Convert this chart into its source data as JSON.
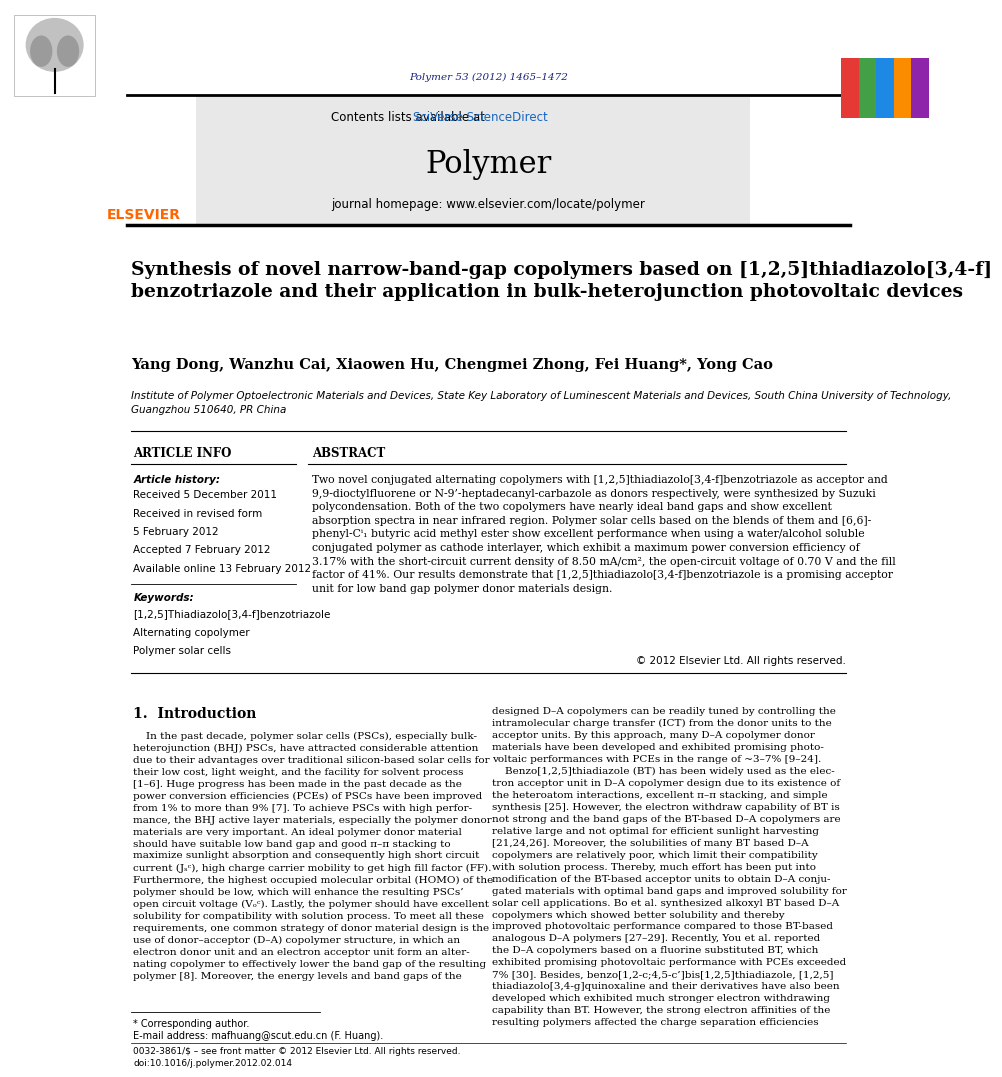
{
  "bg_color": "#ffffff",
  "page_width": 9.92,
  "page_height": 13.23,
  "journal_ref": "Polymer 53 (2012) 1465–1472",
  "journal_ref_color": "#1a237e",
  "journal_name": "Polymer",
  "contents_pre": "Contents lists available at ",
  "sciverse_text": "SciVerse ScienceDirect",
  "sciverse_color": "#1565c0",
  "homepage_line": "journal homepage: www.elsevier.com/locate/polymer",
  "header_bg": "#e8e8e8",
  "elsevier_color": "#ff6600",
  "title": "Synthesis of novel narrow-band-gap copolymers based on [1,2,5]thiadiazolo[3,4-f]\nbenzotriazole and their application in bulk-heterojunction photovoltaic devices",
  "authors": "Yang Dong, Wanzhu Cai, Xiaowen Hu, Chengmei Zhong, Fei Huang*, Yong Cao",
  "affiliation": "Institute of Polymer Optoelectronic Materials and Devices, State Key Laboratory of Luminescent Materials and Devices, South China University of Technology,\nGuangzhou 510640, PR China",
  "article_info_title": "ARTICLE INFO",
  "abstract_title": "ABSTRACT",
  "article_history_label": "Article history:",
  "received1": "Received 5 December 2011",
  "received2": "Received in revised form",
  "received2b": "5 February 2012",
  "accepted": "Accepted 7 February 2012",
  "available": "Available online 13 February 2012",
  "keywords_label": "Keywords:",
  "keyword1": "[1,2,5]Thiadiazolo[3,4-f]benzotriazole",
  "keyword2": "Alternating copolymer",
  "keyword3": "Polymer solar cells",
  "abstract_text": "Two novel conjugated alternating copolymers with [1,2,5]thiadiazolo[3,4-f]benzotriazole as acceptor and\n9,9-dioctylfluorene or N-9’-heptadecanyl-carbazole as donors respectively, were synthesized by Suzuki\npolycondensation. Both of the two copolymers have nearly ideal band gaps and show excellent\nabsorption spectra in near infrared region. Polymer solar cells based on the blends of them and [6,6]-\nphenyl-Cⁱ₁ butyric acid methyl ester show excellent performance when using a water/alcohol soluble\nconjugated polymer as cathode interlayer, which exhibit a maximum power conversion efficiency of\n3.17% with the short-circuit current density of 8.50 mA/cm², the open-circuit voltage of 0.70 V and the fill\nfactor of 41%. Our results demonstrate that [1,2,5]thiadiazolo[3,4-f]benzotriazole is a promising acceptor\nunit for low band gap polymer donor materials design.",
  "copyright": "© 2012 Elsevier Ltd. All rights reserved.",
  "section1_title": "1.  Introduction",
  "intro_col1": "    In the past decade, polymer solar cells (PSCs), especially bulk-\nheterojunction (BHJ) PSCs, have attracted considerable attention\ndue to their advantages over traditional silicon-based solar cells for\ntheir low cost, light weight, and the facility for solvent process\n[1–6]. Huge progress has been made in the past decade as the\npower conversion efficiencies (PCEs) of PSCs have been improved\nfrom 1% to more than 9% [7]. To achieve PSCs with high perfor-\nmance, the BHJ active layer materials, especially the polymer donor\nmaterials are very important. An ideal polymer donor material\nshould have suitable low band gap and good π–π stacking to\nmaximize sunlight absorption and consequently high short circuit\ncurrent (Jₛᶜ), high charge carrier mobility to get high fill factor (FF).\nFurthermore, the highest occupied molecular orbital (HOMO) of the\npolymer should be low, which will enhance the resulting PSCs’\nopen circuit voltage (Vₒᶜ). Lastly, the polymer should have excellent\nsolubility for compatibility with solution process. To meet all these\nrequirements, one common strategy of donor material design is the\nuse of donor–acceptor (D–A) copolymer structure, in which an\nelectron donor unit and an electron acceptor unit form an alter-\nnating copolymer to effectively lower the band gap of the resulting\npolymer [8]. Moreover, the energy levels and band gaps of the",
  "intro_col2": "designed D–A copolymers can be readily tuned by controlling the\nintramolecular charge transfer (ICT) from the donor units to the\nacceptor units. By this approach, many D–A copolymer donor\nmaterials have been developed and exhibited promising photo-\nvoltaic performances with PCEs in the range of ~3–7% [9–24].\n    Benzo[1,2,5]thiadiazole (BT) has been widely used as the elec-\ntron acceptor unit in D–A copolymer design due to its existence of\nthe heteroatom interactions, excellent π–π stacking, and simple\nsynthesis [25]. However, the electron withdraw capability of BT is\nnot strong and the band gaps of the BT-based D–A copolymers are\nrelative large and not optimal for efficient sunlight harvesting\n[21,24,26]. Moreover, the solubilities of many BT based D–A\ncopolymers are relatively poor, which limit their compatibility\nwith solution process. Thereby, much effort has been put into\nmodification of the BT-based acceptor units to obtain D–A conju-\ngated materials with optimal band gaps and improved solubility for\nsolar cell applications. Bo et al. synthesized alkoxyl BT based D–A\ncopolymers which showed better solubility and thereby\nimproved photovoltaic performance compared to those BT-based\nanalogous D–A polymers [27–29]. Recently, You et al. reported\nthe D–A copolymers based on a fluorine substituted BT, which\nexhibited promising photovoltaic performance with PCEs exceeded\n7% [30]. Besides, benzo[1,2-c;4,5-c’]bis[1,2,5]thiadiazole, [1,2,5]\nthiadiazolo[3,4-g]quinoxaline and their derivatives have also been\ndeveloped which exhibited much stronger electron withdrawing\ncapability than BT. However, the strong electron affinities of the\nresulting polymers affected the charge separation efficiencies",
  "footnote_line1": "* Corresponding author.",
  "footnote_line2": "E-mail address: mafhuang@scut.edu.cn (F. Huang).",
  "footer_left": "0032-3861/$ – see front matter © 2012 Elsevier Ltd. All rights reserved.",
  "footer_doi": "doi:10.1016/j.polymer.2012.02.014"
}
